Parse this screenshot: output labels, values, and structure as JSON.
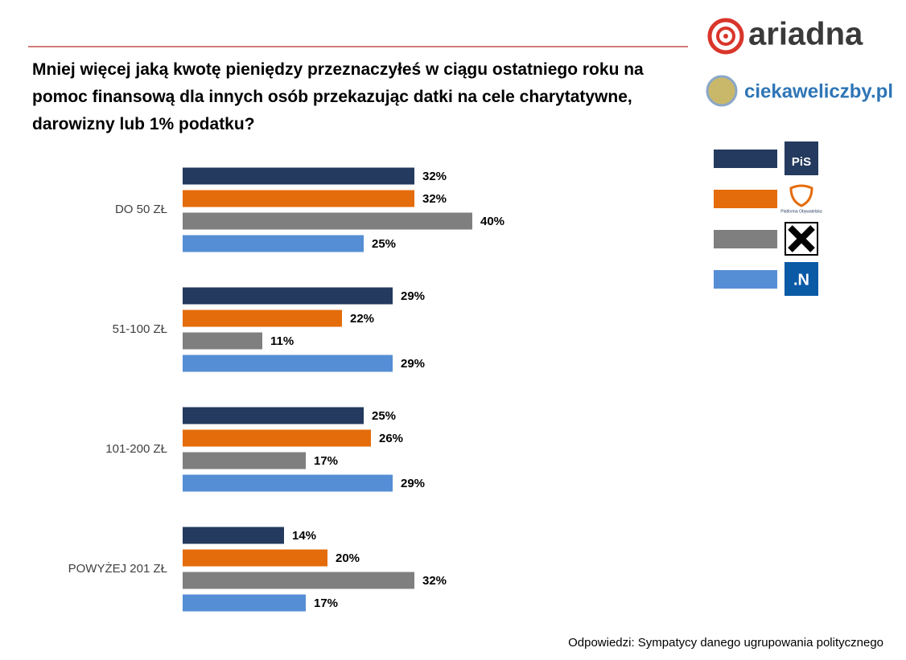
{
  "brand": {
    "logo": "ariadna",
    "site": "ciekaweliczby.pl"
  },
  "chart_data": {
    "type": "bar",
    "orientation": "horizontal",
    "title": "Mniej więcej jaką kwotę pieniędzy przeznaczyłeś w ciągu ostatniego roku na pomoc finansową dla innych osób przekazując datki na cele charytatywne, darowizny lub 1% podatku?",
    "categories": [
      "DO 50 ZŁ",
      "51-100 ZŁ",
      "101-200 ZŁ",
      "POWYŻEJ 201 ZŁ"
    ],
    "series": [
      {
        "name": "PiS",
        "color": "#243a5e",
        "values": [
          32,
          29,
          25,
          14
        ],
        "value_labels": [
          "32%",
          "29%",
          "25%",
          "14%"
        ]
      },
      {
        "name": "Platforma Obywatelska",
        "color": "#e46c0a",
        "values": [
          32,
          22,
          26,
          20
        ],
        "value_labels": [
          "32%",
          "22%",
          "26%",
          "20%"
        ]
      },
      {
        "color": "#7f7f7f",
        "values": [
          40,
          11,
          17,
          32
        ],
        "value_labels": [
          "40%",
          "11%",
          "17%",
          "32%"
        ]
      },
      {
        "name": ".N",
        "color": "#558ed5",
        "values": [
          25,
          29,
          29,
          17
        ],
        "value_labels": [
          "25%",
          "29%",
          "29%",
          "17%"
        ]
      }
    ],
    "footnote": "Odpowiedzi: Sympatycy danego ugrupowania politycznego"
  }
}
